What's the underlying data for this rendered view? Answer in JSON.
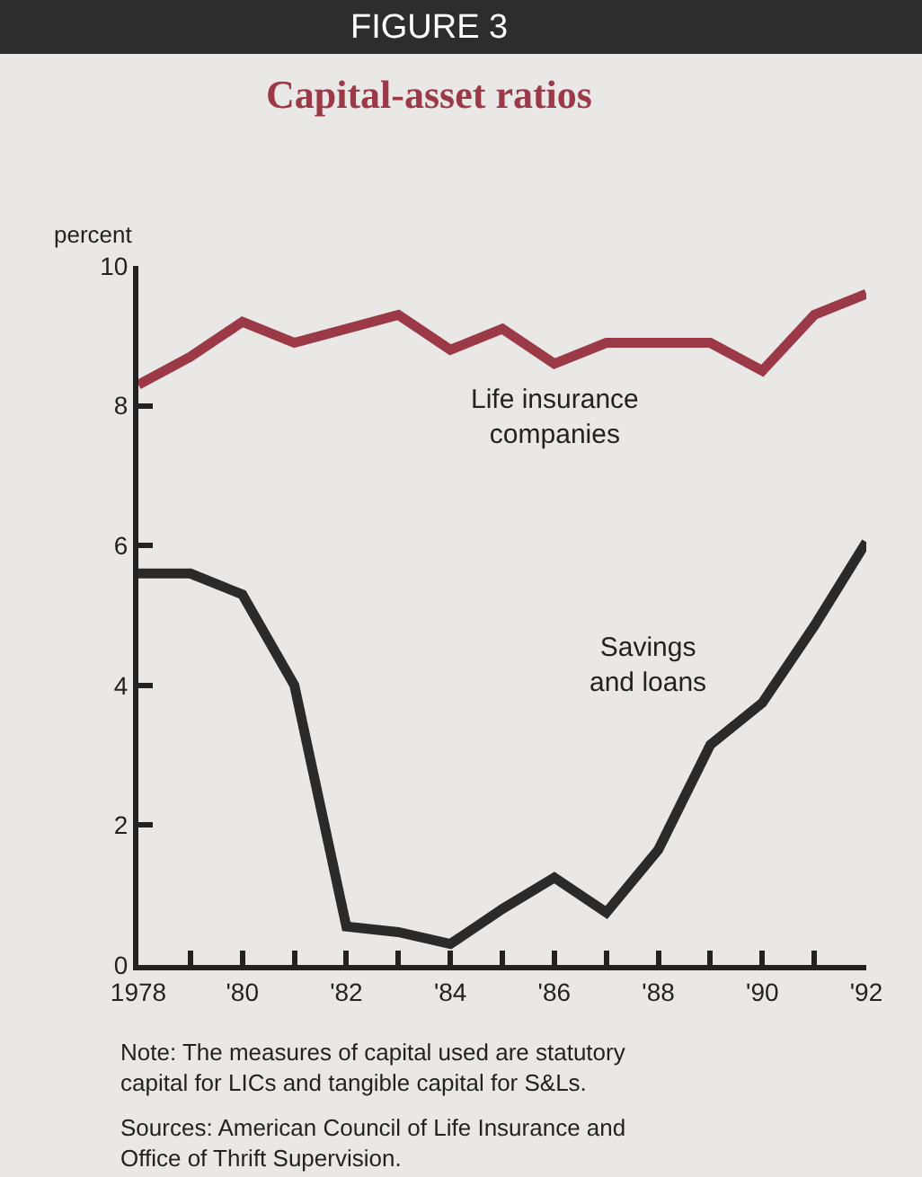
{
  "chart_data": {
    "type": "line",
    "title": "FIGURE 3",
    "subtitle": "Capital-asset ratios",
    "ylabel": "percent",
    "x": [
      1978,
      1979,
      1980,
      1981,
      1982,
      1983,
      1984,
      1985,
      1986,
      1987,
      1988,
      1989,
      1990,
      1991,
      1992
    ],
    "series": [
      {
        "name": "Life insurance companies",
        "color": "#9b3a46",
        "values": [
          8.3,
          8.7,
          9.2,
          8.9,
          9.1,
          9.3,
          8.8,
          9.1,
          8.6,
          8.9,
          8.9,
          8.9,
          8.5,
          9.3,
          9.6
        ]
      },
      {
        "name": "Savings and loans",
        "color": "#2a2a2a",
        "values": [
          5.6,
          5.6,
          5.3,
          4.0,
          0.55,
          0.47,
          0.3,
          0.8,
          1.25,
          0.75,
          1.65,
          3.15,
          3.75,
          4.85,
          6.05
        ]
      }
    ],
    "xlim": [
      1978,
      1992
    ],
    "xticks": [
      {
        "value": 1978,
        "label": "1978"
      },
      {
        "value": 1979,
        "label": null
      },
      {
        "value": 1980,
        "label": "'80"
      },
      {
        "value": 1981,
        "label": null
      },
      {
        "value": 1982,
        "label": "'82"
      },
      {
        "value": 1983,
        "label": null
      },
      {
        "value": 1984,
        "label": "'84"
      },
      {
        "value": 1985,
        "label": null
      },
      {
        "value": 1986,
        "label": "'86"
      },
      {
        "value": 1987,
        "label": null
      },
      {
        "value": 1988,
        "label": "'88"
      },
      {
        "value": 1989,
        "label": null
      },
      {
        "value": 1990,
        "label": "'90"
      },
      {
        "value": 1991,
        "label": null
      },
      {
        "value": 1992,
        "label": "'92"
      }
    ],
    "ylim": [
      0,
      10
    ],
    "yticks": [
      0,
      2,
      4,
      6,
      8,
      10
    ],
    "grid": false,
    "legend": false,
    "marker": "none",
    "line_style": "solid",
    "annotations": [
      "Note: The measures of capital used are statutory capital for LICs and tangible capital for S&Ls.",
      "Sources: American Council of Life Insurance and Office of Thrift Supervision."
    ]
  }
}
